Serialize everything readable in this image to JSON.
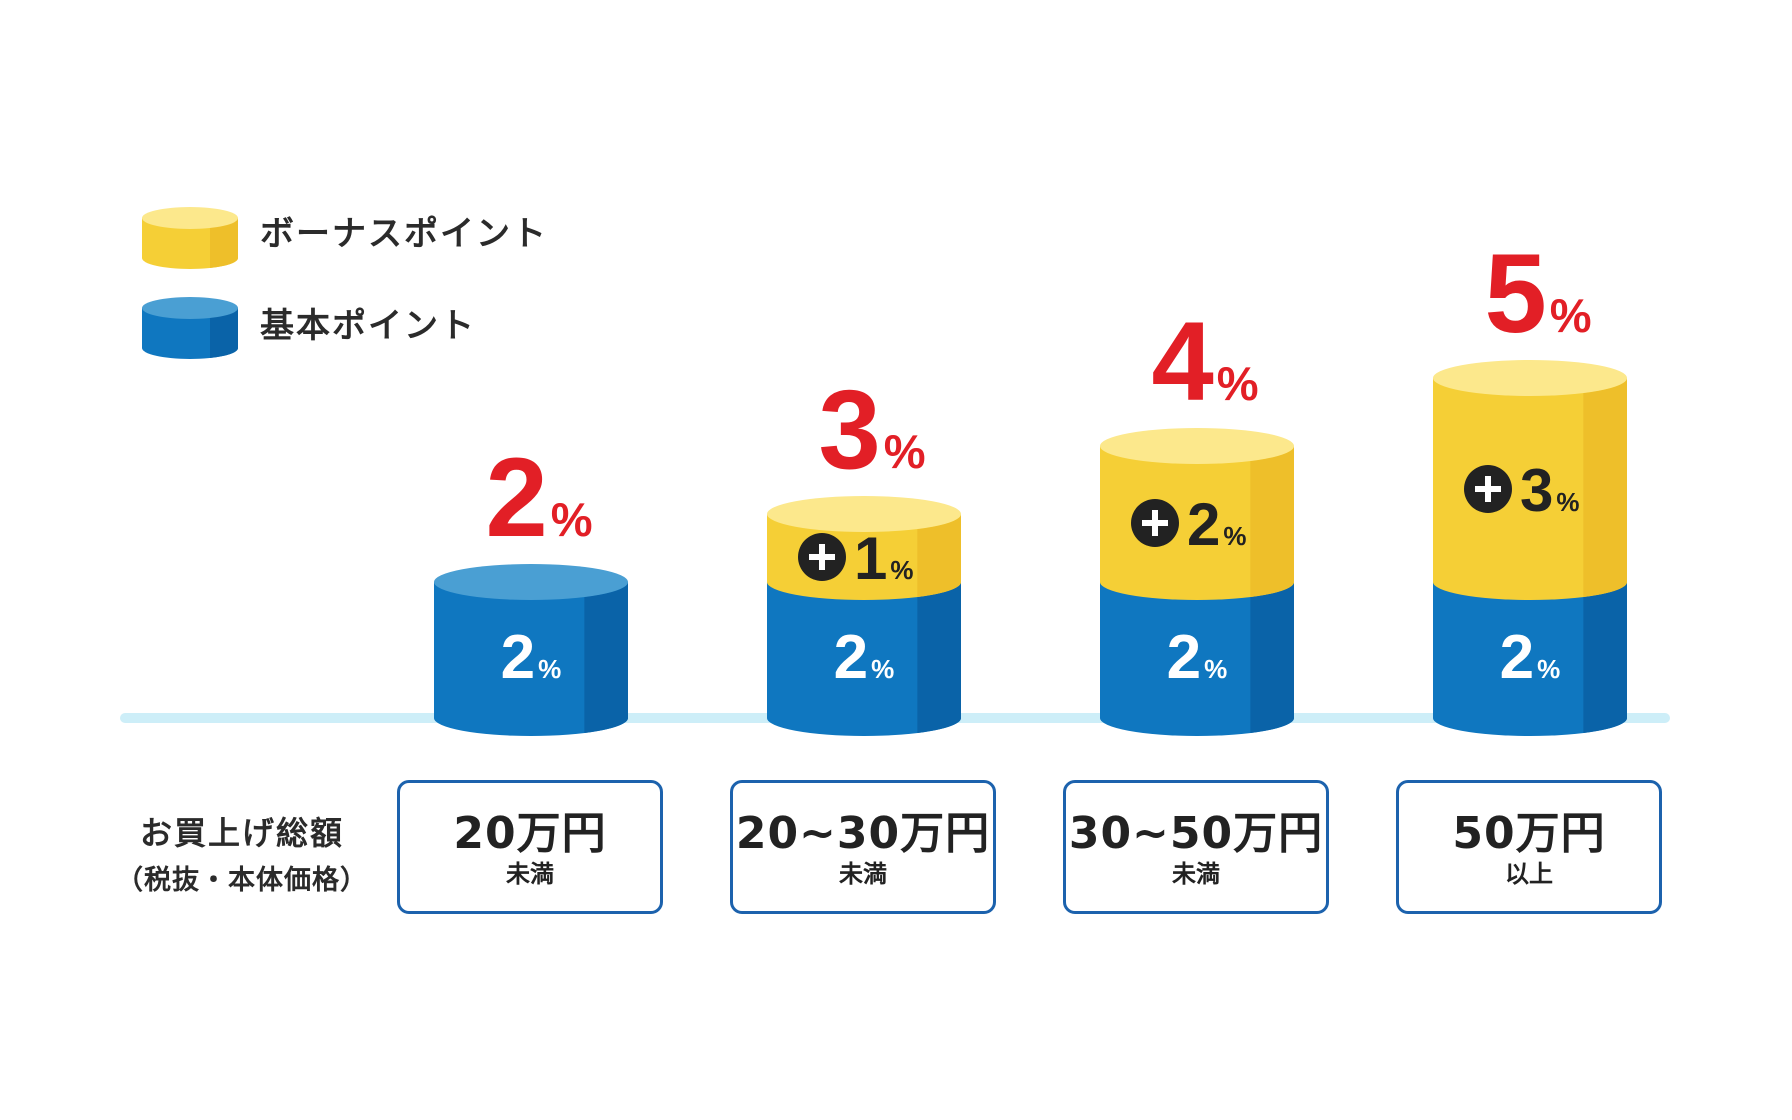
{
  "legend": {
    "bonus_label": "ボーナスポイント",
    "base_label": "基本ポイント"
  },
  "row_label": {
    "line1": "お買上げ総額",
    "line2": "（税抜・本体価格）"
  },
  "colors": {
    "bonus": "#f5cf36",
    "base": "#0f77c0",
    "total_text": "#e21f26",
    "baseline": "#cdeef8",
    "box_border": "#1c62ad"
  },
  "chart_data": {
    "type": "bar",
    "stacked": true,
    "categories": [
      "20万円 未満",
      "20~30万円 未満",
      "30~50万円 未満",
      "50万円 以上"
    ],
    "series": [
      {
        "name": "基本ポイント",
        "values": [
          2,
          2,
          2,
          2
        ]
      },
      {
        "name": "ボーナスポイント",
        "values": [
          0,
          1,
          2,
          3
        ]
      }
    ],
    "totals": [
      2,
      3,
      4,
      5
    ],
    "value_suffix": "%",
    "bonus_prefix": "+",
    "ranges": [
      {
        "main": "20万円",
        "sub": "未満"
      },
      {
        "main": "20~30万円",
        "sub": "未満"
      },
      {
        "main": "30~50万円",
        "sub": "未満"
      },
      {
        "main": "50万円",
        "sub": "以上"
      }
    ]
  }
}
